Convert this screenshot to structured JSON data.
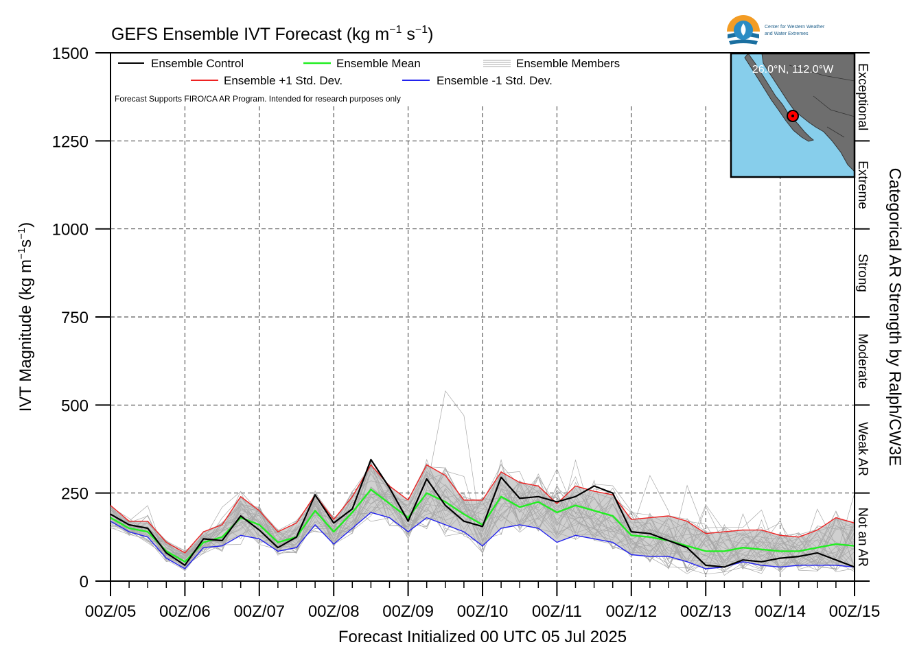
{
  "chart_data": {
    "type": "line",
    "title": "GEFS Ensemble IVT Forecast (kg m$^{-1}$ s$^{-1}$)",
    "title_parts": {
      "main": "GEFS Ensemble IVT Forecast (kg m",
      "exp1": "−1",
      "mid": " s",
      "exp2": "−1",
      "end": ")"
    },
    "ylabel_parts": {
      "main": "IVT Magnitude (kg m",
      "exp1": "−1",
      "mid": "s",
      "exp2": "−1",
      "end": ")"
    },
    "xlabel": "Forecast Initialized 00 UTC 05 Jul 2025",
    "right_label": "Categorical AR Strength by Ralph/CW3E",
    "note": "Forecast Supports FIRO/CA AR Program. Intended for research purposes only",
    "xlim": [
      0,
      240
    ],
    "ylim": [
      0,
      1500
    ],
    "x_ticks": [
      {
        "x": 0,
        "label": "00Z/05"
      },
      {
        "x": 24,
        "label": "00Z/06"
      },
      {
        "x": 48,
        "label": "00Z/07"
      },
      {
        "x": 72,
        "label": "00Z/08"
      },
      {
        "x": 96,
        "label": "00Z/09"
      },
      {
        "x": 120,
        "label": "00Z/10"
      },
      {
        "x": 144,
        "label": "00Z/11"
      },
      {
        "x": 168,
        "label": "00Z/12"
      },
      {
        "x": 192,
        "label": "00Z/13"
      },
      {
        "x": 216,
        "label": "00Z/14"
      },
      {
        "x": 240,
        "label": "00Z/15"
      }
    ],
    "y_ticks": [
      0,
      250,
      500,
      750,
      1000,
      1250,
      1500
    ],
    "grid": true,
    "legend": {
      "placement": "top-left",
      "entries": [
        {
          "label": "Ensemble Control",
          "color": "#000000"
        },
        {
          "label": "Ensemble Mean",
          "color": "#22ee22"
        },
        {
          "label": "Ensemble Members",
          "color": "#aaaaaa"
        },
        {
          "label": "Ensemble +1 Std. Dev.",
          "color": "#ee2222"
        },
        {
          "label": "Ensemble -1 Std. Dev.",
          "color": "#2222ee"
        }
      ]
    },
    "categories_right": [
      {
        "label": "Not an AR",
        "from": 0,
        "to": 250
      },
      {
        "label": "Weak AR",
        "from": 250,
        "to": 500
      },
      {
        "label": "Moderate",
        "from": 500,
        "to": 750
      },
      {
        "label": "Strong",
        "from": 750,
        "to": 1000
      },
      {
        "label": "Extreme",
        "from": 1000,
        "to": 1250
      },
      {
        "label": "Exceptional",
        "from": 1250,
        "to": 1500
      }
    ],
    "x_hours": [
      0,
      6,
      12,
      18,
      24,
      30,
      36,
      42,
      48,
      54,
      60,
      66,
      72,
      78,
      84,
      90,
      96,
      102,
      108,
      114,
      120,
      126,
      132,
      138,
      144,
      150,
      156,
      162,
      168,
      174,
      180,
      186,
      192,
      198,
      204,
      210,
      216,
      222,
      228,
      234,
      240
    ],
    "series": [
      {
        "name": "Ensemble Control",
        "color": "#000000",
        "values": [
          190,
          160,
          150,
          80,
          45,
          120,
          115,
          185,
          145,
          95,
          125,
          245,
          165,
          205,
          345,
          265,
          170,
          290,
          215,
          170,
          155,
          295,
          235,
          240,
          225,
          240,
          270,
          250,
          140,
          135,
          115,
          95,
          45,
          40,
          60,
          55,
          65,
          70,
          80,
          60,
          40
        ]
      },
      {
        "name": "Ensemble Mean",
        "color": "#22ee22",
        "values": [
          180,
          150,
          140,
          85,
          55,
          110,
          125,
          180,
          160,
          110,
          125,
          200,
          140,
          195,
          260,
          220,
          180,
          250,
          225,
          190,
          160,
          240,
          210,
          225,
          195,
          215,
          200,
          185,
          130,
          125,
          115,
          100,
          85,
          85,
          95,
          90,
          85,
          85,
          95,
          105,
          100
        ]
      },
      {
        "name": "Ensemble +1 Std. Dev.",
        "color": "#ee2222",
        "values": [
          215,
          170,
          170,
          110,
          80,
          140,
          160,
          240,
          200,
          140,
          165,
          245,
          175,
          240,
          330,
          270,
          230,
          330,
          300,
          230,
          230,
          310,
          280,
          270,
          220,
          270,
          255,
          245,
          175,
          180,
          185,
          170,
          135,
          140,
          145,
          145,
          130,
          125,
          145,
          180,
          165
        ]
      },
      {
        "name": "Ensemble -1 Std. Dev.",
        "color": "#2222ee",
        "values": [
          170,
          140,
          125,
          65,
          35,
          95,
          100,
          130,
          120,
          85,
          95,
          160,
          105,
          150,
          195,
          180,
          140,
          180,
          160,
          140,
          100,
          150,
          160,
          150,
          110,
          130,
          120,
          110,
          75,
          70,
          70,
          55,
          35,
          40,
          55,
          45,
          40,
          45,
          45,
          45,
          40
        ]
      }
    ],
    "members_note": "approx. 30 individual ensemble members spread around the mean within about the +1/-1 std. dev. envelope, peaking near 540 at 00Z/09 + 12h"
  },
  "inset": {
    "location_label": "26.0°N, 112.0°W",
    "ocean_color": "#87ceeb",
    "land_color": "#6e6e6e",
    "marker_color": "#ff0000"
  },
  "logo": {
    "line1": "Center for Western Weather",
    "line2": "and Water Extremes"
  }
}
